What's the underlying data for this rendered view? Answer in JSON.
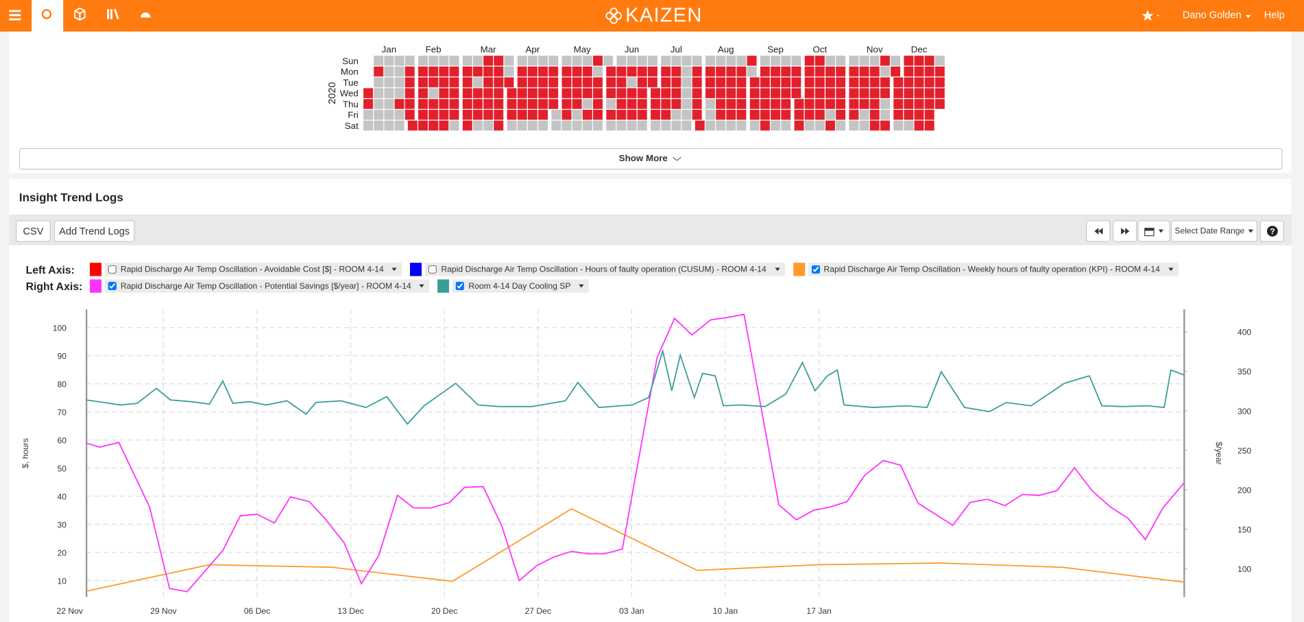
{
  "nav": {
    "brand": "KAIZEN",
    "user": "Dano Golden",
    "help": "Help"
  },
  "calendar": {
    "year": "2020",
    "months": [
      "Jan",
      "Feb",
      "Mar",
      "Apr",
      "May",
      "Jun",
      "Jul",
      "Aug",
      "Sep",
      "Oct",
      "Nov",
      "Dec"
    ],
    "days": [
      "Sun",
      "Mon",
      "Tue",
      "Wed",
      "Thu",
      "Fri",
      "Sat"
    ],
    "colors": [
      "#c4c4c4",
      "#e2202c"
    ],
    "values": [
      1,
      1,
      0,
      0,
      0,
      1,
      0,
      0,
      0,
      0,
      0,
      0,
      0,
      0,
      0,
      0,
      0,
      0,
      0,
      0,
      0,
      0,
      1,
      0,
      0,
      0,
      1,
      1,
      1,
      1,
      1,
      1,
      0,
      1,
      1,
      1,
      1,
      1,
      1,
      0,
      1,
      1,
      0,
      1,
      1,
      1,
      0,
      1,
      1,
      1,
      1,
      1,
      1,
      0,
      1,
      1,
      1,
      1,
      1,
      0,
      0,
      1,
      1,
      1,
      1,
      1,
      1,
      0,
      1,
      0,
      1,
      1,
      1,
      0,
      1,
      1,
      1,
      1,
      1,
      1,
      0,
      1,
      1,
      1,
      1,
      1,
      1,
      1,
      0,
      0,
      1,
      1,
      1,
      1,
      0,
      0,
      1,
      1,
      1,
      1,
      1,
      0,
      0,
      1,
      1,
      1,
      1,
      1,
      0,
      0,
      1,
      1,
      1,
      1,
      1,
      0,
      0,
      1,
      1,
      1,
      1,
      0,
      0,
      0,
      1,
      1,
      1,
      1,
      1,
      0,
      0,
      1,
      1,
      1,
      1,
      0,
      0,
      0,
      1,
      1,
      1,
      0,
      1,
      0,
      1,
      0,
      1,
      1,
      1,
      1,
      0,
      0,
      1,
      1,
      1,
      0,
      1,
      0,
      0,
      1,
      1,
      1,
      1,
      1,
      0,
      0,
      1,
      0,
      1,
      1,
      1,
      0,
      0,
      1,
      1,
      1,
      1,
      1,
      0,
      0,
      1,
      1,
      1,
      1,
      1,
      0,
      0,
      1,
      1,
      1,
      1,
      1,
      0,
      0,
      1,
      1,
      1,
      1,
      0,
      0,
      0,
      0,
      0,
      0,
      0,
      0,
      0,
      0,
      1,
      1,
      1,
      1,
      1,
      1,
      0,
      1,
      1,
      1,
      0,
      0,
      0,
      0,
      1,
      1,
      1,
      1,
      1,
      0,
      0,
      1,
      1,
      1,
      1,
      1,
      0,
      0,
      1,
      1,
      1,
      1,
      1,
      0,
      1,
      0,
      1,
      1,
      1,
      1,
      0,
      0,
      1,
      1,
      1,
      1,
      1,
      1,
      0,
      1,
      1,
      1,
      1,
      1,
      0,
      0,
      1,
      1,
      1,
      1,
      1,
      0,
      0,
      1,
      1,
      1,
      1,
      1,
      1,
      1,
      1,
      1,
      1,
      1,
      1,
      0,
      1,
      1,
      1,
      1,
      1,
      1,
      0,
      0,
      1,
      1,
      1,
      1,
      0,
      1,
      0,
      1,
      1,
      1,
      1,
      1,
      0,
      0,
      1,
      1,
      1,
      1,
      1,
      0,
      0,
      1,
      1,
      1,
      1,
      0,
      0,
      0,
      1,
      1,
      1,
      1,
      1,
      1,
      1,
      0,
      1,
      1,
      0,
      0,
      1,
      0,
      1,
      1,
      1,
      1,
      1,
      0,
      1,
      1,
      1,
      1,
      1,
      1,
      0,
      1,
      1,
      1,
      1,
      1,
      1,
      1,
      1,
      1,
      1,
      1,
      1,
      1,
      1,
      0,
      1,
      1,
      1,
      1
    ]
  },
  "show_more": "Show More",
  "section_title": "Insight Trend Logs",
  "toolbar": {
    "csv": "CSV",
    "add": "Add Trend Logs",
    "date_range": "Select Date Range"
  },
  "chart_data": {
    "type": "line",
    "left_axis_label": "Left Axis:",
    "right_axis_label": "Right Axis:",
    "ylabel": "$, hours",
    "y2label": "$/year",
    "xlim": [
      1.25,
      83.3
    ],
    "xticks": [
      {
        "value": 0,
        "label": "22 Nov"
      },
      {
        "value": 7,
        "label": "29 Nov"
      },
      {
        "value": 14,
        "label": "06 Dec"
      },
      {
        "value": 21,
        "label": "13 Dec"
      },
      {
        "value": 28,
        "label": "20 Dec"
      },
      {
        "value": 35,
        "label": "27 Dec"
      },
      {
        "value": 42,
        "label": "03 Jan"
      },
      {
        "value": 49,
        "label": "10 Jan"
      },
      {
        "value": 56,
        "label": "17 Jan"
      }
    ],
    "ylim": [
      4.1,
      106.5
    ],
    "yticks": [
      10,
      20,
      30,
      40,
      50,
      60,
      70,
      80,
      90,
      100
    ],
    "y2lim": [
      64.2,
      428.4
    ],
    "y2ticks": [
      100,
      150,
      200,
      250,
      300,
      350,
      400
    ],
    "grid": true,
    "series": [
      {
        "name": "Rapid Discharge Air Temp Oscillation - Avoidable Cost [$] - ROOM 4-14",
        "color": "#ff0000",
        "axis": "y",
        "checked": false
      },
      {
        "name": "Rapid Discharge Air Temp Oscillation - Hours of faulty operation (CUSUM) - ROOM 4-14",
        "color": "#0000ff",
        "axis": "y",
        "checked": false
      },
      {
        "name": "Rapid Discharge Air Temp Oscillation - Weekly hours of faulty operation (KPI) - ROOM 4-14",
        "color": "#ff9a2e",
        "axis": "y",
        "checked": true,
        "x": [
          1.25,
          10.45,
          19.6,
          28.6,
          37.5,
          46.9,
          56.0,
          65.1,
          74.2,
          83.3
        ],
        "values": [
          6.2,
          15.6,
          14.7,
          9.7,
          35.5,
          13.6,
          15.6,
          16.2,
          14.7,
          9.4
        ]
      },
      {
        "name": "Rapid Discharge Air Temp Oscillation - Potential Savings [$/year] - ROOM 4-14",
        "color": "#ff33ff",
        "axis": "y2",
        "checked": true,
        "x": [
          1.25,
          2.24,
          3.67,
          5.97,
          7.46,
          8.77,
          11.44,
          12.75,
          14.0,
          15.3,
          16.5,
          17.9,
          19.1,
          20.5,
          21.8,
          23.1,
          24.5,
          25.7,
          27.0,
          28.4,
          29.5,
          30.9,
          32.3,
          33.6,
          34.9,
          36.2,
          37.5,
          38.7,
          40.0,
          41.3,
          43.9,
          45.2,
          46.5,
          47.9,
          49.1,
          50.4,
          53.0,
          54.3,
          55.6,
          56.8,
          58.1,
          59.4,
          60.8,
          62.1,
          63.4,
          64.7,
          66.0,
          67.3,
          68.6,
          69.9,
          71.2,
          72.5,
          73.8,
          75.1,
          76.4,
          77.8,
          79.1,
          80.4,
          81.7,
          83.3
        ],
        "values": [
          259,
          254,
          260,
          178,
          75,
          71,
          123,
          167,
          169,
          158,
          191,
          185,
          163,
          133,
          81,
          117,
          193,
          177,
          177,
          184,
          203,
          204,
          154,
          85,
          104,
          115,
          122,
          119,
          119,
          125,
          367,
          417,
          396,
          415,
          418,
          422,
          181,
          162,
          174,
          178,
          185,
          218,
          237,
          231,
          183,
          169,
          155,
          184,
          188,
          180,
          194,
          193,
          199,
          228,
          199,
          178,
          164,
          137,
          177,
          209
        ]
      },
      {
        "name": "Room 4-14 Day Cooling SP",
        "color": "#3a9e98",
        "axis": "y2",
        "checked": true,
        "x": [
          1.25,
          2.55,
          3.8,
          5.04,
          6.47,
          7.53,
          9.08,
          10.45,
          11.44,
          12.19,
          13.43,
          14.67,
          16.23,
          17.66,
          18.4,
          20.27,
          22.13,
          23.69,
          25.24,
          26.48,
          28.85,
          30.52,
          32.08,
          34.56,
          37.05,
          37.98,
          39.54,
          42.02,
          43.27,
          44.32,
          45.0,
          45.63,
          46.68,
          47.3,
          48.24,
          48.86,
          50.1,
          51.97,
          53.52,
          54.76,
          55.7,
          56.63,
          57.37,
          57.87,
          60.05,
          62.53,
          64.08,
          65.14,
          66.88,
          68.75,
          69.99,
          71.85,
          74.34,
          75.58,
          76.21,
          77.14,
          78.7,
          80.56,
          81.8,
          82.3,
          83.3
        ],
        "values": [
          313.7,
          310.5,
          307.4,
          309.5,
          328.4,
          313.7,
          311.6,
          308.4,
          337.9,
          309.5,
          311.6,
          307.4,
          312.6,
          295.8,
          310.5,
          312.6,
          304.2,
          317.9,
          283.2,
          306.3,
          334.7,
          307.4,
          305.3,
          305.3,
          312.6,
          335.8,
          304.2,
          307.4,
          316.8,
          375.8,
          325.3,
          370.5,
          316.8,
          347.4,
          344.2,
          306.3,
          307.4,
          305.3,
          321.1,
          361.1,
          325.3,
          344.2,
          351.6,
          307.4,
          304.2,
          306.3,
          304.2,
          349.5,
          304.2,
          298.9,
          310.5,
          306.3,
          334.7,
          341.1,
          344.2,
          306.3,
          305.3,
          306.3,
          304.2,
          351.6,
          345.3
        ]
      }
    ]
  }
}
